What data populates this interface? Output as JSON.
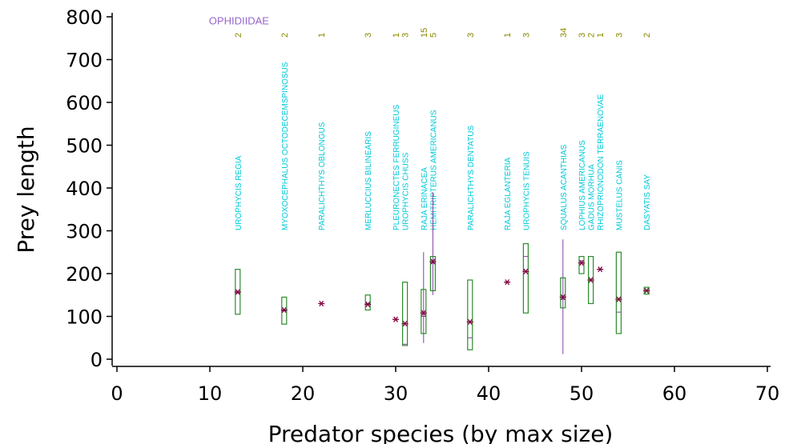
{
  "chart_data": {
    "type": "boxplot",
    "xlabel": "Predator species (by max size)",
    "ylabel": "Prey length",
    "xlim": [
      0,
      70
    ],
    "ylim": [
      0,
      800
    ],
    "xticks": [
      0,
      10,
      20,
      30,
      40,
      50,
      60,
      70
    ],
    "yticks": [
      0,
      100,
      200,
      300,
      400,
      500,
      600,
      700,
      800
    ],
    "annotation": {
      "text": "OPHIDIIDAE",
      "x": 13,
      "y": 790,
      "color": "#9966cc"
    },
    "colors": {
      "species_label": "#00c8d8",
      "count": "#8a8a00",
      "box": "#2e8b2e",
      "whisker": "#8040a0",
      "mean": "#800040"
    },
    "species": [
      {
        "name": "UROPHYCIS REGIA",
        "x": 13,
        "count": "2",
        "q1": 105,
        "q3": 210,
        "median": 155,
        "mean": 157
      },
      {
        "name": "MYOXOCEPHALUS OCTODECEMSPINOSUS",
        "x": 18,
        "count": "2",
        "q1": 82,
        "q3": 145,
        "median": 113,
        "mean": 115
      },
      {
        "name": "PARALICHTHYS OBLONGUS",
        "x": 22,
        "count": "1",
        "mean": 130
      },
      {
        "name": "MERLUCCIUS BILINEARIS",
        "x": 27,
        "count": "3",
        "q1": 115,
        "q3": 150,
        "median": 130,
        "mean": 128
      },
      {
        "name": "PLEURONECTES FERRUGINEUS",
        "x": 30,
        "count": "1",
        "mean": 93
      },
      {
        "name": "UROPHYCIS CHUSS",
        "x": 31,
        "count": "3",
        "q1": 32,
        "q3": 180,
        "median": 35,
        "mean": 83
      },
      {
        "name": "RAJA ERINACEA",
        "x": 33,
        "count": "15",
        "q1": 60,
        "q3": 163,
        "median": 100,
        "mean": 108,
        "wlow": 38,
        "whigh": 250
      },
      {
        "name": "HEMITRIPTERUS AMERICANUS",
        "x": 34,
        "count": "5",
        "q1": 160,
        "q3": 240,
        "median": 225,
        "mean": 228,
        "wlow": 150,
        "whigh": 390
      },
      {
        "name": "PARALICHTHYS DENTATUS",
        "x": 38,
        "count": "3",
        "q1": 22,
        "q3": 185,
        "median": 50,
        "mean": 87
      },
      {
        "name": "RAJA EGLANTERIA",
        "x": 42,
        "count": "1",
        "mean": 180
      },
      {
        "name": "UROPHYCIS TENUIS",
        "x": 44,
        "count": "3",
        "q1": 108,
        "q3": 270,
        "median": 240,
        "mean": 205
      },
      {
        "name": "SQUALUS ACANTHIAS",
        "x": 48,
        "count": "34",
        "q1": 120,
        "q3": 190,
        "median": 140,
        "mean": 145,
        "wlow": 12,
        "whigh": 280
      },
      {
        "name": "LOPHIUS AMERICANUS",
        "x": 50,
        "count": "3",
        "q1": 200,
        "q3": 240,
        "median": 230,
        "mean": 225
      },
      {
        "name": "GADUS MORHUA",
        "x": 51,
        "count": "2",
        "q1": 130,
        "q3": 240,
        "median": 185,
        "mean": 185
      },
      {
        "name": "RHIZOPRIONODON TERRAENOVAE",
        "x": 52,
        "count": "1",
        "mean": 210
      },
      {
        "name": "MUSTELUS CANIS",
        "x": 54,
        "count": "3",
        "q1": 60,
        "q3": 250,
        "median": 110,
        "mean": 140
      },
      {
        "name": "DASYATIS SAY",
        "x": 57,
        "count": "2",
        "q1": 152,
        "q3": 168,
        "median": 160,
        "mean": 160
      }
    ]
  }
}
